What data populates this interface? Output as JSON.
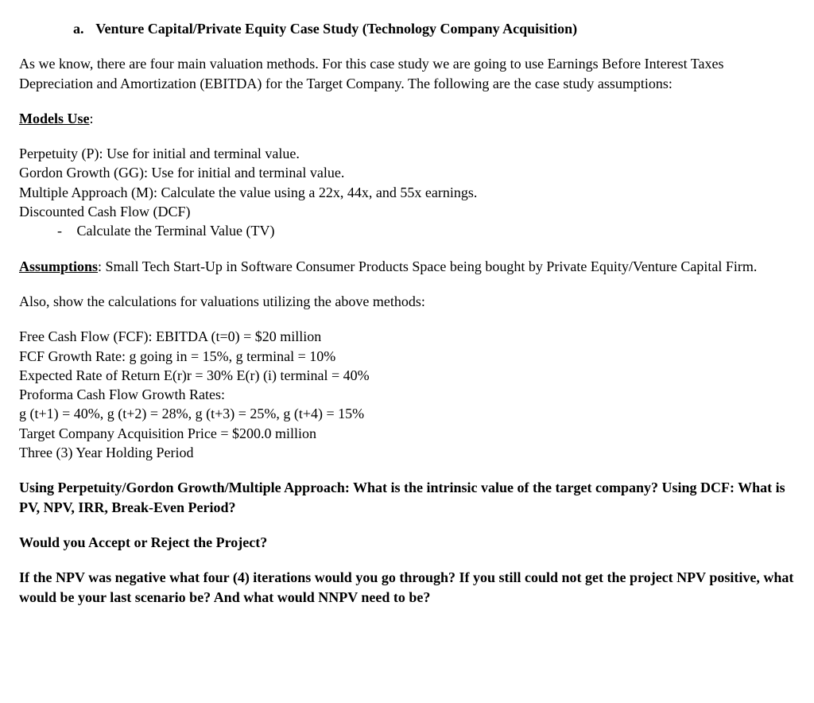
{
  "title_marker": "a.",
  "title": "Venture Capital/Private Equity Case Study (Technology Company Acquisition)",
  "intro": "As we know, there are four main valuation methods. For this case study we are going to use Earnings Before Interest Taxes Depreciation and Amortization (EBITDA) for the Target Company. The following are the case study assumptions:",
  "models_use_label": "Models Use",
  "models_use_colon": ":",
  "models": {
    "p": "Perpetuity (P): Use for initial and terminal value.",
    "gg": "Gordon Growth (GG): Use for initial and terminal value.",
    "m": "Multiple Approach (M): Calculate the value using a 22x, 44x, and 55x earnings.",
    "dcf": "Discounted Cash Flow (DCF)",
    "dcf_sub_marker": "-",
    "dcf_sub": "Calculate the Terminal Value (TV)"
  },
  "assumptions_label": "Assumptions",
  "assumptions_text": ": Small Tech Start-Up in Software Consumer Products Space being bought by Private Equity/Venture Capital Firm.",
  "also_show": "Also, show the calculations for valuations utilizing the above methods:",
  "fcf": {
    "line1": "Free Cash Flow (FCF): EBITDA (t=0) = $20 million",
    "line2": "FCF Growth Rate: g going in = 15%, g terminal = 10%",
    "line3": "Expected Rate of Return E(r)r = 30% E(r) (i) terminal = 40%",
    "line4": "Proforma Cash Flow Growth Rates:",
    "line5": "g (t+1) = 40%, g (t+2) = 28%, g (t+3) = 25%, g (t+4) = 15%",
    "line6": "Target Company Acquisition Price = $200.0 million",
    "line7": "Three (3) Year Holding Period"
  },
  "q1": "Using Perpetuity/Gordon Growth/Multiple Approach: What is the intrinsic value of the target company? Using DCF: What is PV, NPV, IRR, Break-Even Period?",
  "q2": "Would you Accept or Reject the Project?",
  "q3": "If the NPV was negative what four (4) iterations would you go through? If you still could not get the project NPV positive, what would be your last scenario be? And what would NNPV need to be?"
}
